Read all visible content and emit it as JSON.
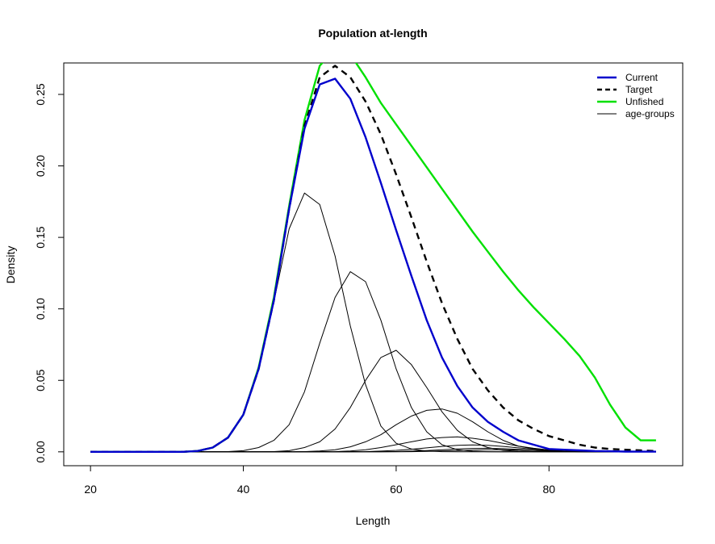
{
  "chart_data": {
    "type": "line",
    "title": "Population at-length",
    "xlabel": "Length",
    "ylabel": "Density",
    "xlim": [
      16.5,
      97.5
    ],
    "ylim": [
      -0.0097,
      0.272
    ],
    "xticks": [
      20,
      40,
      60,
      80
    ],
    "yticks": [
      0.0,
      0.05,
      0.1,
      0.15,
      0.2,
      0.25
    ],
    "ytick_labels": [
      "0.00",
      "0.05",
      "0.10",
      "0.15",
      "0.20",
      "0.25"
    ],
    "grid": false,
    "legend_position": "top-right",
    "x": [
      20,
      22,
      24,
      26,
      28,
      30,
      32,
      34,
      36,
      38,
      40,
      42,
      44,
      46,
      48,
      50,
      52,
      54,
      56,
      58,
      60,
      62,
      64,
      66,
      68,
      70,
      72,
      74,
      76,
      78,
      80,
      82,
      84,
      86,
      88,
      90,
      92,
      94
    ],
    "series": [
      {
        "name": "Current",
        "color": "#0000cc",
        "style": "solid",
        "width": 2.4,
        "values": [
          0,
          0,
          0,
          0,
          0,
          0,
          0,
          0.0006,
          0.003,
          0.01,
          0.026,
          0.058,
          0.106,
          0.17,
          0.226,
          0.257,
          0.261,
          0.247,
          0.22,
          0.188,
          0.155,
          0.123,
          0.092,
          0.066,
          0.046,
          0.031,
          0.021,
          0.014,
          0.008,
          0.005,
          0.002,
          0.0015,
          0.001,
          0.0006,
          0.0004,
          0.0002,
          0.0001,
          0.0001
        ]
      },
      {
        "name": "Target",
        "color": "#000000",
        "style": "dashed",
        "width": 2.4,
        "values": [
          0,
          0,
          0,
          0,
          0,
          0,
          0,
          0.0006,
          0.003,
          0.01,
          0.026,
          0.058,
          0.106,
          0.17,
          0.228,
          0.262,
          0.27,
          0.262,
          0.245,
          0.222,
          0.194,
          0.164,
          0.133,
          0.104,
          0.079,
          0.058,
          0.043,
          0.031,
          0.022,
          0.016,
          0.011,
          0.008,
          0.005,
          0.003,
          0.002,
          0.0015,
          0.001,
          0.0005
        ]
      },
      {
        "name": "Unfished",
        "color": "#00e000",
        "style": "solid",
        "width": 2.4,
        "values": [
          0,
          0,
          0,
          0,
          0,
          0,
          0,
          0.0006,
          0.003,
          0.01,
          0.026,
          0.059,
          0.108,
          0.172,
          0.232,
          0.27,
          0.282,
          0.278,
          0.262,
          0.244,
          0.229,
          0.214,
          0.199,
          0.184,
          0.169,
          0.154,
          0.14,
          0.126,
          0.113,
          0.101,
          0.09,
          0.079,
          0.067,
          0.052,
          0.033,
          0.017,
          0.008,
          0.008
        ]
      },
      {
        "name": "age-groups",
        "color": "#000000",
        "style": "solid",
        "width": 1,
        "values": [
          0,
          0,
          0,
          0,
          0,
          0,
          0,
          0.0006,
          0.003,
          0.01,
          0.026,
          0.058,
          0.105,
          0.156,
          0.181,
          0.173,
          0.137,
          0.088,
          0.047,
          0.018,
          0.006,
          0.002,
          0.0005,
          0.0001,
          0,
          0,
          0,
          0,
          0,
          0,
          0,
          0,
          0,
          0,
          0,
          0,
          0,
          0
        ]
      },
      {
        "name": "",
        "color": "#000000",
        "style": "solid",
        "width": 1,
        "values": [
          0,
          0,
          0,
          0,
          0,
          0,
          0,
          0,
          0,
          0.0002,
          0.0008,
          0.003,
          0.008,
          0.019,
          0.042,
          0.076,
          0.108,
          0.126,
          0.119,
          0.092,
          0.058,
          0.031,
          0.014,
          0.005,
          0.0015,
          0.0004,
          0.0001,
          0,
          0,
          0,
          0,
          0,
          0,
          0,
          0,
          0,
          0,
          0
        ]
      },
      {
        "name": "",
        "color": "#000000",
        "style": "solid",
        "width": 1,
        "values": [
          0,
          0,
          0,
          0,
          0,
          0,
          0,
          0,
          0,
          0,
          0,
          0,
          0.0002,
          0.0008,
          0.003,
          0.007,
          0.016,
          0.031,
          0.05,
          0.066,
          0.071,
          0.061,
          0.045,
          0.028,
          0.015,
          0.007,
          0.003,
          0.001,
          0.0004,
          0.0001,
          0,
          0,
          0,
          0,
          0,
          0,
          0,
          0
        ]
      },
      {
        "name": "",
        "color": "#000000",
        "style": "solid",
        "width": 1,
        "values": [
          0,
          0,
          0,
          0,
          0,
          0,
          0,
          0,
          0,
          0,
          0,
          0,
          0,
          0,
          0.0002,
          0.0006,
          0.0015,
          0.0035,
          0.007,
          0.012,
          0.019,
          0.025,
          0.029,
          0.03,
          0.027,
          0.021,
          0.014,
          0.008,
          0.004,
          0.002,
          0.0008,
          0.0003,
          0.0001,
          0,
          0,
          0,
          0,
          0
        ]
      },
      {
        "name": "",
        "color": "#000000",
        "style": "solid",
        "width": 1,
        "values": [
          0,
          0,
          0,
          0,
          0,
          0,
          0,
          0,
          0,
          0,
          0,
          0,
          0,
          0,
          0,
          0,
          0.0002,
          0.0006,
          0.0014,
          0.003,
          0.005,
          0.007,
          0.009,
          0.01,
          0.0105,
          0.0095,
          0.008,
          0.006,
          0.004,
          0.0025,
          0.0013,
          0.0006,
          0.0003,
          0.0001,
          0,
          0,
          0,
          0
        ]
      },
      {
        "name": "",
        "color": "#000000",
        "style": "solid",
        "width": 1,
        "values": [
          0,
          0,
          0,
          0,
          0,
          0,
          0,
          0,
          0,
          0,
          0,
          0,
          0,
          0,
          0,
          0,
          0,
          0,
          0.0002,
          0.0005,
          0.001,
          0.0018,
          0.0028,
          0.0038,
          0.0045,
          0.0048,
          0.0045,
          0.0038,
          0.0028,
          0.0018,
          0.001,
          0.0005,
          0.0002,
          0.0001,
          0,
          0,
          0,
          0
        ]
      },
      {
        "name": "",
        "color": "#000000",
        "style": "solid",
        "width": 1,
        "values": [
          0,
          0,
          0,
          0,
          0,
          0,
          0,
          0,
          0,
          0,
          0,
          0,
          0,
          0,
          0,
          0,
          0,
          0,
          0,
          0,
          0.0002,
          0.0005,
          0.0009,
          0.0014,
          0.002,
          0.0024,
          0.0025,
          0.0022,
          0.0017,
          0.0011,
          0.0006,
          0.0003,
          0.0001,
          0,
          0,
          0,
          0,
          0
        ]
      },
      {
        "name": "",
        "color": "#000000",
        "style": "solid",
        "width": 1,
        "values": [
          0,
          0,
          0,
          0,
          0,
          0,
          0,
          0,
          0,
          0,
          0,
          0,
          0,
          0,
          0,
          0,
          0,
          0,
          0,
          0,
          0,
          0.0001,
          0.0003,
          0.0006,
          0.0009,
          0.0012,
          0.0014,
          0.0014,
          0.0012,
          0.0009,
          0.0005,
          0.0003,
          0.0001,
          0,
          0,
          0,
          0,
          0
        ]
      }
    ],
    "legend": [
      {
        "label": "Current",
        "color": "#0000cc",
        "style": "solid",
        "width": 2.4
      },
      {
        "label": "Target",
        "color": "#000000",
        "style": "dashed",
        "width": 2.4
      },
      {
        "label": "Unfished",
        "color": "#00e000",
        "style": "solid",
        "width": 2.4
      },
      {
        "label": "age-groups",
        "color": "#000000",
        "style": "solid",
        "width": 1
      }
    ]
  }
}
